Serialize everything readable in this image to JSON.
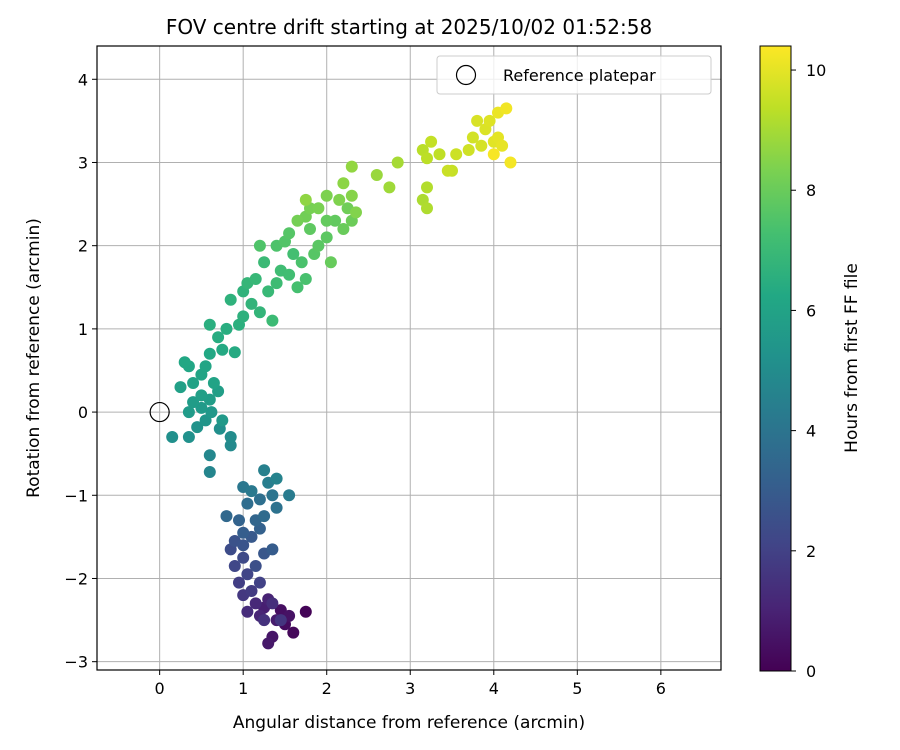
{
  "chart_data": {
    "type": "scatter",
    "title": "FOV centre drift starting at 2025/10/02 01:52:58",
    "xlabel": "Angular distance from reference (arcmin)",
    "ylabel": "Rotation from reference (arcmin)",
    "xlim": [
      -0.75,
      6.72
    ],
    "ylim": [
      -3.1,
      4.4
    ],
    "xticks": [
      0,
      1,
      2,
      3,
      4,
      5,
      6
    ],
    "yticks": [
      -3,
      -2,
      -1,
      0,
      1,
      2,
      3,
      4
    ],
    "xtick_labels": [
      "0",
      "1",
      "2",
      "3",
      "4",
      "5",
      "6"
    ],
    "ytick_labels": [
      "−3",
      "−2",
      "−1",
      "0",
      "1",
      "2",
      "3",
      "4"
    ],
    "grid": true,
    "colormap": "viridis",
    "colorbar": {
      "label": "Hours from first FF file",
      "range": [
        0,
        10.4
      ],
      "ticks": [
        0,
        2,
        4,
        6,
        8,
        10
      ],
      "tick_labels": [
        "0",
        "2",
        "4",
        "6",
        "8",
        "10"
      ]
    },
    "legend": {
      "placement": "top-right",
      "entries": [
        "Reference platepar"
      ]
    },
    "reference_point": {
      "x": 0,
      "y": 0,
      "label": "Reference platepar"
    },
    "series": [
      {
        "name": "",
        "color_by": "hours",
        "points": [
          [
            1.75,
            -2.4,
            0.1
          ],
          [
            1.6,
            -2.65,
            0.2
          ],
          [
            1.5,
            -2.55,
            0.3
          ],
          [
            1.45,
            -2.38,
            0.4
          ],
          [
            1.55,
            -2.45,
            0.5
          ],
          [
            1.35,
            -2.7,
            0.6
          ],
          [
            1.3,
            -2.78,
            0.7
          ],
          [
            1.4,
            -2.5,
            0.8
          ],
          [
            1.25,
            -2.35,
            0.9
          ],
          [
            1.3,
            -2.25,
            1.0
          ],
          [
            1.2,
            -2.45,
            1.1
          ],
          [
            1.15,
            -2.3,
            1.2
          ],
          [
            1.05,
            -2.4,
            1.3
          ],
          [
            1.35,
            -2.3,
            1.4
          ],
          [
            1.25,
            -2.5,
            1.5
          ],
          [
            1.45,
            -2.5,
            1.6
          ],
          [
            1.0,
            -2.2,
            1.7
          ],
          [
            1.1,
            -2.15,
            1.8
          ],
          [
            0.95,
            -2.05,
            1.9
          ],
          [
            1.2,
            -2.05,
            2.0
          ],
          [
            1.05,
            -1.95,
            2.1
          ],
          [
            0.9,
            -1.85,
            2.2
          ],
          [
            1.0,
            -1.75,
            2.3
          ],
          [
            0.85,
            -1.65,
            2.4
          ],
          [
            1.15,
            -1.85,
            2.5
          ],
          [
            0.9,
            -1.55,
            2.6
          ],
          [
            1.0,
            -1.6,
            2.7
          ],
          [
            1.25,
            -1.7,
            2.8
          ],
          [
            1.1,
            -1.5,
            2.9
          ],
          [
            1.35,
            -1.65,
            3.0
          ],
          [
            1.0,
            -1.45,
            3.1
          ],
          [
            1.2,
            -1.4,
            3.2
          ],
          [
            0.95,
            -1.3,
            3.3
          ],
          [
            1.15,
            -1.3,
            3.4
          ],
          [
            0.8,
            -1.25,
            3.5
          ],
          [
            1.25,
            -1.25,
            3.6
          ],
          [
            1.05,
            -1.1,
            3.7
          ],
          [
            1.2,
            -1.05,
            3.8
          ],
          [
            1.4,
            -1.15,
            3.9
          ],
          [
            1.35,
            -1.0,
            4.0
          ],
          [
            1.0,
            -0.9,
            4.1
          ],
          [
            1.1,
            -0.95,
            4.2
          ],
          [
            1.55,
            -1.0,
            4.3
          ],
          [
            1.3,
            -0.85,
            4.4
          ],
          [
            1.25,
            -0.7,
            4.5
          ],
          [
            1.4,
            -0.8,
            4.6
          ],
          [
            0.6,
            -0.72,
            4.7
          ],
          [
            0.6,
            -0.52,
            4.8
          ],
          [
            0.85,
            -0.4,
            4.9
          ],
          [
            0.85,
            -0.3,
            5.0
          ],
          [
            0.72,
            -0.2,
            5.1
          ],
          [
            0.15,
            -0.3,
            5.15
          ],
          [
            0.35,
            -0.3,
            5.2
          ],
          [
            0.45,
            -0.18,
            5.3
          ],
          [
            0.55,
            -0.1,
            5.4
          ],
          [
            0.62,
            0.0,
            5.5
          ],
          [
            0.75,
            -0.1,
            5.55
          ],
          [
            0.5,
            0.05,
            5.6
          ],
          [
            0.35,
            0.0,
            5.65
          ],
          [
            0.4,
            0.12,
            5.7
          ],
          [
            0.6,
            0.15,
            5.75
          ],
          [
            0.7,
            0.25,
            5.8
          ],
          [
            0.5,
            0.2,
            5.85
          ],
          [
            0.25,
            0.3,
            5.9
          ],
          [
            0.4,
            0.35,
            5.95
          ],
          [
            0.65,
            0.35,
            6.0
          ],
          [
            0.5,
            0.45,
            6.05
          ],
          [
            0.55,
            0.55,
            6.1
          ],
          [
            0.35,
            0.55,
            6.15
          ],
          [
            0.3,
            0.6,
            6.2
          ],
          [
            0.6,
            0.7,
            6.25
          ],
          [
            0.75,
            0.75,
            6.3
          ],
          [
            0.9,
            0.72,
            6.35
          ],
          [
            0.7,
            0.9,
            6.4
          ],
          [
            0.8,
            1.0,
            6.45
          ],
          [
            0.6,
            1.05,
            6.5
          ],
          [
            0.95,
            1.05,
            6.55
          ],
          [
            1.0,
            1.15,
            6.6
          ],
          [
            0.85,
            1.35,
            6.65
          ],
          [
            1.0,
            1.45,
            6.7
          ],
          [
            1.1,
            1.3,
            6.75
          ],
          [
            1.2,
            1.2,
            6.8
          ],
          [
            1.05,
            1.55,
            6.85
          ],
          [
            1.15,
            1.6,
            6.9
          ],
          [
            1.3,
            1.45,
            6.95
          ],
          [
            1.25,
            1.8,
            7.0
          ],
          [
            1.35,
            1.1,
            7.05
          ],
          [
            1.4,
            1.55,
            7.1
          ],
          [
            1.45,
            1.7,
            7.15
          ],
          [
            1.55,
            1.65,
            7.2
          ],
          [
            1.6,
            1.9,
            7.25
          ],
          [
            1.65,
            1.5,
            7.3
          ],
          [
            1.75,
            1.6,
            7.35
          ],
          [
            1.7,
            1.8,
            7.4
          ],
          [
            1.4,
            2.0,
            7.45
          ],
          [
            1.2,
            2.0,
            7.5
          ],
          [
            1.5,
            2.05,
            7.55
          ],
          [
            1.55,
            2.15,
            7.6
          ],
          [
            1.85,
            1.9,
            7.65
          ],
          [
            1.9,
            2.0,
            7.7
          ],
          [
            2.0,
            2.1,
            7.75
          ],
          [
            1.8,
            2.2,
            7.8
          ],
          [
            2.1,
            2.3,
            7.85
          ],
          [
            2.0,
            2.3,
            7.9
          ],
          [
            2.05,
            1.8,
            7.95
          ],
          [
            2.2,
            2.2,
            8.0
          ],
          [
            2.3,
            2.3,
            8.05
          ],
          [
            2.25,
            2.45,
            8.1
          ],
          [
            1.75,
            2.35,
            8.15
          ],
          [
            1.65,
            2.3,
            8.2
          ],
          [
            1.8,
            2.45,
            8.25
          ],
          [
            1.9,
            2.45,
            8.3
          ],
          [
            2.0,
            2.6,
            8.35
          ],
          [
            2.15,
            2.55,
            8.4
          ],
          [
            2.35,
            2.4,
            8.45
          ],
          [
            2.3,
            2.6,
            8.5
          ],
          [
            2.2,
            2.75,
            8.6
          ],
          [
            1.75,
            2.55,
            8.65
          ],
          [
            2.3,
            2.95,
            8.7
          ],
          [
            2.6,
            2.85,
            8.8
          ],
          [
            2.75,
            2.7,
            8.9
          ],
          [
            2.85,
            3.0,
            9.0
          ],
          [
            3.15,
            2.55,
            9.1
          ],
          [
            3.2,
            2.45,
            9.15
          ],
          [
            3.2,
            2.7,
            9.2
          ],
          [
            3.15,
            3.15,
            9.3
          ],
          [
            3.2,
            3.05,
            9.35
          ],
          [
            3.35,
            3.1,
            9.4
          ],
          [
            3.25,
            3.25,
            9.45
          ],
          [
            3.5,
            2.9,
            9.5
          ],
          [
            3.45,
            2.9,
            9.55
          ],
          [
            3.55,
            3.1,
            9.6
          ],
          [
            3.7,
            3.15,
            9.65
          ],
          [
            3.75,
            3.3,
            9.7
          ],
          [
            3.85,
            3.2,
            9.75
          ],
          [
            3.8,
            3.5,
            9.8
          ],
          [
            3.9,
            3.4,
            9.85
          ],
          [
            3.95,
            3.5,
            9.9
          ],
          [
            4.0,
            3.25,
            9.95
          ],
          [
            4.05,
            3.3,
            10.0
          ],
          [
            4.1,
            3.2,
            10.05
          ],
          [
            4.05,
            3.6,
            10.1
          ],
          [
            4.15,
            3.65,
            10.2
          ],
          [
            4.2,
            3.0,
            10.25
          ],
          [
            4.0,
            3.1,
            10.3
          ]
        ]
      }
    ]
  }
}
